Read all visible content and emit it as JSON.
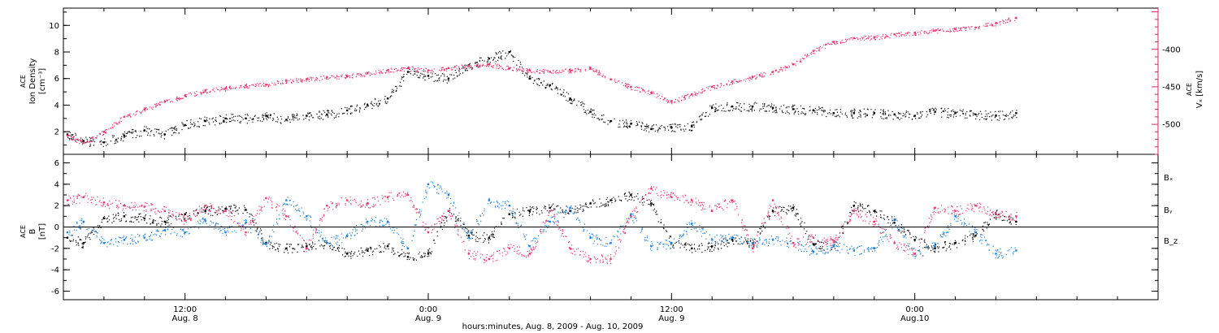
{
  "colors": {
    "black": "#000000",
    "blue": "#1f7fd8",
    "red": "#e8366d",
    "axis_red": "#e0245e"
  },
  "x_axis": {
    "label": "hours:minutes, Aug.  8, 2009 - Aug. 10, 2009",
    "ticks": [
      {
        "time": "12:00",
        "date": "Aug. 8"
      },
      {
        "time": "0:00",
        "date": "Aug. 9"
      },
      {
        "time": "12:00",
        "date": "Aug. 9"
      },
      {
        "time": "0:00",
        "date": "Aug.10"
      }
    ],
    "range_hours": [
      6,
      60
    ]
  },
  "chart_data": [
    {
      "type": "scatter",
      "panel": "top",
      "x_unit": "hours since 2009-08-08 00:00",
      "left_axis": {
        "label_line1": "ACE",
        "label_line2": "Ion Density",
        "label_line3": "[cm⁻³]",
        "ylim": [
          0.3,
          11.3
        ],
        "ticks": [
          "2",
          "4",
          "6",
          "8",
          "10"
        ]
      },
      "right_axis": {
        "label_line1": "ACE",
        "label_line2": "Vₓ [km/s]",
        "ylim": [
          -540,
          -345
        ],
        "ticks": [
          "-400",
          "-450",
          "-500"
        ]
      },
      "series": [
        {
          "name": "Ion Density",
          "color": "black",
          "axis": "left",
          "x": [
            6.2,
            7,
            8,
            9,
            10,
            11,
            12,
            13,
            14,
            15,
            16,
            17,
            18,
            19,
            20,
            21,
            22,
            23,
            24,
            25,
            26,
            27,
            28,
            29,
            30,
            31,
            32,
            33,
            34,
            35,
            36,
            37,
            38,
            39,
            40,
            41,
            42,
            43,
            44,
            45,
            46,
            47,
            48,
            49,
            50,
            51,
            52,
            53
          ],
          "y": [
            1.8,
            1.3,
            1.2,
            1.7,
            2.1,
            1.8,
            2.5,
            2.8,
            3.0,
            3.0,
            3.2,
            2.9,
            3.2,
            3.3,
            3.6,
            4.0,
            4.5,
            6.5,
            6.2,
            6.0,
            7.0,
            7.5,
            8.0,
            6.0,
            5.5,
            4.5,
            3.5,
            2.8,
            2.6,
            2.2,
            2.3,
            2.4,
            3.8,
            3.9,
            3.9,
            3.8,
            3.7,
            3.6,
            3.4,
            3.4,
            3.4,
            3.3,
            3.2,
            3.5,
            3.4,
            3.3,
            3.2,
            3.4
          ]
        },
        {
          "name": "Vx",
          "color": "red",
          "axis": "right",
          "x": [
            6.2,
            7,
            8,
            9,
            10,
            11,
            12,
            13,
            14,
            15,
            16,
            17,
            18,
            19,
            20,
            21,
            22,
            23,
            24,
            25,
            26,
            27,
            28,
            29,
            30,
            31,
            32,
            33,
            34,
            35,
            36,
            37,
            38,
            39,
            40,
            41,
            42,
            43,
            44,
            45,
            46,
            47,
            48,
            49,
            50,
            51,
            52,
            53
          ],
          "y": [
            -515,
            -525,
            -510,
            -490,
            -480,
            -470,
            -462,
            -455,
            -452,
            -448,
            -447,
            -442,
            -440,
            -437,
            -436,
            -432,
            -428,
            -425,
            -428,
            -425,
            -422,
            -420,
            -425,
            -428,
            -430,
            -428,
            -425,
            -440,
            -450,
            -458,
            -470,
            -460,
            -450,
            -443,
            -437,
            -430,
            -420,
            -402,
            -390,
            -385,
            -384,
            -380,
            -378,
            -375,
            -373,
            -371,
            -365,
            -358
          ]
        }
      ]
    },
    {
      "type": "scatter",
      "panel": "bottom",
      "x_unit": "hours since 2009-08-08 00:00",
      "left_axis": {
        "label_line1": "ACE",
        "label_line2": "B",
        "label_line3": "[nT]",
        "ylim": [
          -6.8,
          6.8
        ],
        "ticks": [
          "-6",
          "-4",
          "-2",
          "0",
          "2",
          "4",
          "6"
        ]
      },
      "legend": [
        "Bₓ",
        "Bᵧ",
        "B_z"
      ],
      "series": [
        {
          "name": "Bₓ",
          "color": "black",
          "x": [
            6.2,
            7,
            8,
            9,
            10,
            11,
            12,
            13,
            14,
            15,
            16,
            17,
            18,
            19,
            20,
            21,
            22,
            23,
            24,
            25,
            26,
            27,
            28,
            29,
            30,
            31,
            32,
            33,
            34,
            35,
            36,
            37,
            38,
            39,
            40,
            41,
            42,
            43,
            44,
            45,
            46,
            47,
            48,
            49,
            50,
            51,
            52,
            53
          ],
          "y": [
            -1.0,
            -1.5,
            0.8,
            1.0,
            0.8,
            0.5,
            1.2,
            1.5,
            1.7,
            1.6,
            -1.5,
            -2.0,
            -1.8,
            -1.5,
            -2.5,
            -2.2,
            -1.8,
            -2.8,
            -2.5,
            1.5,
            -0.8,
            -1.0,
            1.2,
            1.5,
            1.8,
            1.5,
            2.2,
            2.5,
            3.0,
            2.2,
            -1.5,
            -2.0,
            -1.8,
            -1.2,
            -1.5,
            1.5,
            1.8,
            -1.6,
            -1.8,
            2.0,
            1.5,
            0.4,
            -1.2,
            -2.0,
            -1.5,
            -0.8,
            1.2,
            0.5
          ]
        },
        {
          "name": "Bᵧ",
          "color": "blue",
          "x": [
            6.2,
            7,
            8,
            9,
            10,
            11,
            12,
            13,
            14,
            15,
            16,
            17,
            18,
            19,
            20,
            21,
            22,
            23,
            24,
            25,
            26,
            27,
            28,
            29,
            30,
            31,
            32,
            33,
            34,
            35,
            36,
            37,
            38,
            39,
            40,
            41,
            42,
            43,
            44,
            45,
            46,
            47,
            48,
            49,
            50,
            51,
            52,
            53
          ],
          "y": [
            -0.5,
            0.5,
            -1.5,
            -1.2,
            -1.0,
            -0.3,
            -0.5,
            0.6,
            -0.5,
            0.4,
            -1.6,
            2.5,
            1.0,
            -1.5,
            -0.8,
            0.5,
            0.5,
            -2.0,
            4.0,
            3.0,
            -1.0,
            2.5,
            2.0,
            -1.8,
            0.5,
            1.8,
            -1.0,
            -1.5,
            1.2,
            -1.8,
            -1.5,
            0.3,
            -1.2,
            -1.0,
            -1.5,
            -1.2,
            -1.5,
            -2.3,
            -1.8,
            -2.2,
            -2.0,
            0.7,
            -2.5,
            -1.8,
            1.0,
            -0.5,
            -2.5,
            -2.2
          ]
        },
        {
          "name": "B_z",
          "color": "red",
          "x": [
            6.2,
            7,
            8,
            9,
            10,
            11,
            12,
            13,
            14,
            15,
            16,
            17,
            18,
            19,
            20,
            21,
            22,
            23,
            24,
            25,
            26,
            27,
            28,
            29,
            30,
            31,
            32,
            33,
            34,
            35,
            36,
            37,
            38,
            39,
            40,
            41,
            42,
            43,
            44,
            45,
            46,
            47,
            48,
            49,
            50,
            51,
            52,
            53
          ],
          "y": [
            2.5,
            2.8,
            2.3,
            2.0,
            1.9,
            1.5,
            0.6,
            2.0,
            1.5,
            -0.5,
            2.7,
            1.0,
            -2.0,
            2.0,
            2.5,
            2.2,
            2.8,
            3.0,
            -0.5,
            1.5,
            -2.5,
            -3.0,
            -2.0,
            -2.5,
            1.5,
            -2.0,
            -3.0,
            -3.0,
            1.0,
            3.6,
            2.8,
            2.5,
            1.5,
            2.5,
            -2.0,
            2.5,
            -1.5,
            -1.0,
            -1.3,
            1.5,
            0.5,
            -1.5,
            -2.5,
            1.8,
            1.5,
            2.0,
            1.2,
            1.0
          ]
        }
      ]
    }
  ]
}
